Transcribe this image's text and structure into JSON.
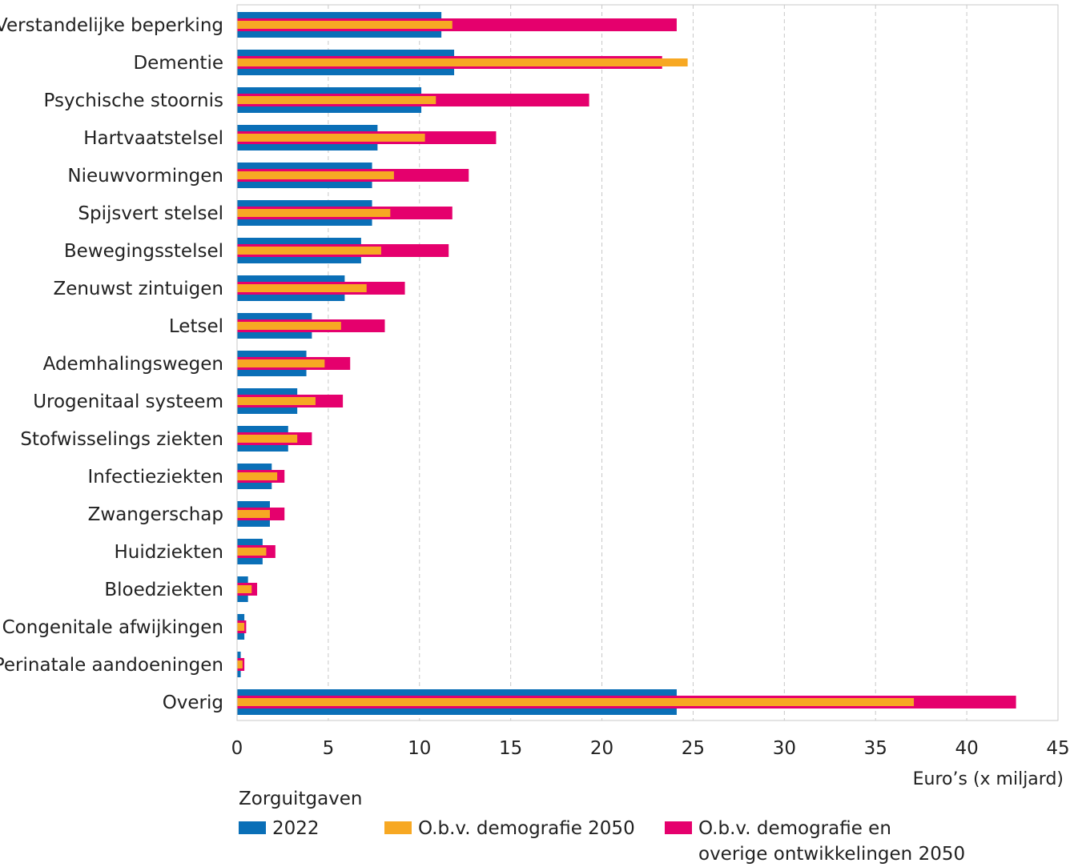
{
  "chart_data": {
    "type": "bar",
    "orientation": "horizontal",
    "categories": [
      "Verstandelijke beperking",
      "Dementie",
      "Psychische stoornis",
      "Hartvaatstelsel",
      "Nieuwvormingen",
      "Spijsvert stelsel",
      "Bewegingsstelsel",
      "Zenuwst zintuigen",
      "Letsel",
      "Ademhalingswegen",
      "Urogenitaal systeem",
      "Stofwisselings ziekten",
      "Infectieziekten",
      "Zwangerschap",
      "Huidziekten",
      "Bloedziekten",
      "Congenitale afwijkingen",
      "Perinatale aandoeningen",
      "Overig"
    ],
    "series": [
      {
        "name": "2022",
        "color": "#0a6fb7",
        "values": [
          11.2,
          11.9,
          10.1,
          7.7,
          7.4,
          7.4,
          6.8,
          5.9,
          4.1,
          3.8,
          3.3,
          2.8,
          1.9,
          1.8,
          1.4,
          0.6,
          0.4,
          0.2,
          24.1
        ]
      },
      {
        "name": "O.b.v. demografie 2050",
        "color": "#f7a823",
        "values": [
          11.8,
          24.7,
          10.9,
          10.3,
          8.6,
          8.4,
          7.9,
          7.1,
          5.7,
          4.8,
          4.3,
          3.3,
          2.2,
          1.8,
          1.6,
          0.8,
          0.4,
          0.3,
          37.1
        ]
      },
      {
        "name": "O.b.v. demografie en overige ontwikkelingen 2050",
        "color": "#e5006d",
        "values": [
          24.1,
          23.3,
          19.3,
          14.2,
          12.7,
          11.8,
          11.6,
          9.2,
          8.1,
          6.2,
          5.8,
          4.1,
          2.6,
          2.6,
          2.1,
          1.1,
          0.5,
          0.4,
          42.7
        ]
      }
    ],
    "xlim": [
      0,
      45
    ],
    "xticks": [
      0,
      5,
      10,
      15,
      20,
      25,
      30,
      35,
      40,
      45
    ],
    "xlabel": "Euro’s (x miljard)",
    "grid": "vertical dashed",
    "legend_position": "bottom"
  },
  "legend": {
    "title": "Zorguitgaven",
    "items": [
      {
        "line1": "2022",
        "line2": ""
      },
      {
        "line1": "O.b.v. demografie 2050",
        "line2": ""
      },
      {
        "line1": "O.b.v. demografie en",
        "line2": "overige ontwikkelingen 2050"
      }
    ]
  }
}
